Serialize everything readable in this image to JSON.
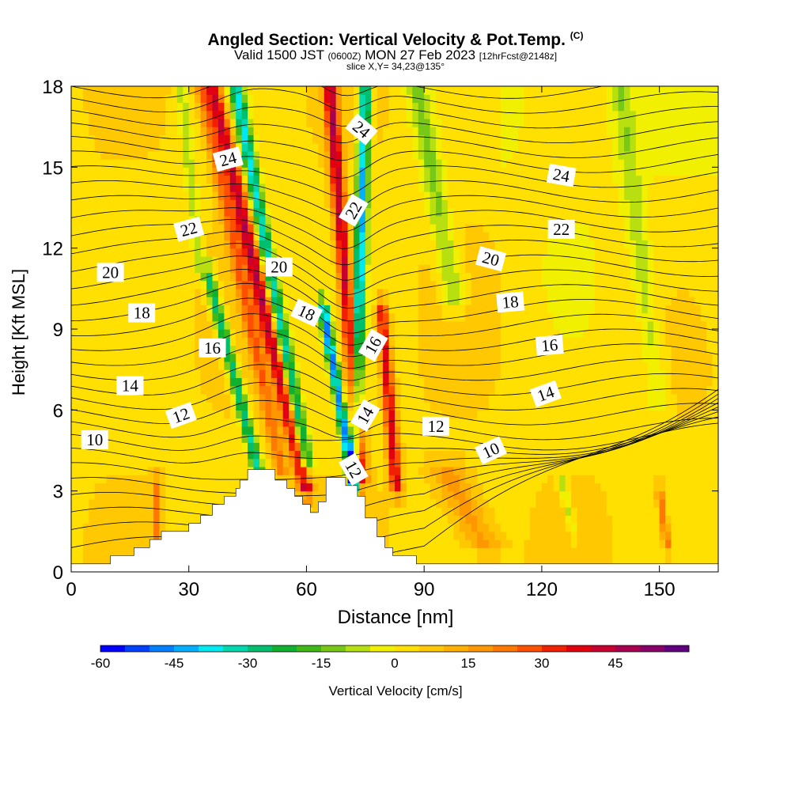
{
  "title": "Angled Section: Vertical Velocity & Pot.Temp.",
  "title_mark": "(C)",
  "subtitle_a": "Valid 1500 JST",
  "subtitle_z": "(0600Z)",
  "subtitle_b": "MON 27 Feb 2023",
  "subtitle_fcst": "[12hrFcst@2148z]",
  "slice": "slice X,Y= 34,23@135°",
  "chart_data": {
    "type": "heatmap",
    "xlabel": "Distance [nm]",
    "ylabel": "Height [Kft MSL]",
    "xlim": [
      0,
      165
    ],
    "ylim": [
      0,
      18
    ],
    "x_ticks": [
      0,
      30,
      60,
      90,
      120,
      150
    ],
    "y_ticks": [
      0,
      3,
      6,
      9,
      12,
      15,
      18
    ],
    "colorbar": {
      "label": "Vertical Velocity [cm/s]",
      "min": -60,
      "max": 55,
      "step": 5,
      "ticks": [
        -60,
        -45,
        -30,
        -15,
        0,
        15,
        30,
        45
      ],
      "colors": [
        "#0000ff",
        "#0040ff",
        "#0080ff",
        "#00b0ff",
        "#00e8f0",
        "#00d8b0",
        "#00c070",
        "#10b030",
        "#40b818",
        "#78c818",
        "#b8e010",
        "#f0f000",
        "#ffe000",
        "#ffc800",
        "#ffb000",
        "#ff9800",
        "#ff7800",
        "#ff5000",
        "#f02000",
        "#e00010",
        "#c80030",
        "#a80050",
        "#880068",
        "#600080"
      ]
    },
    "terrain_top_kft": [
      [
        0,
        0.3
      ],
      [
        10,
        0.3
      ],
      [
        10,
        0.6
      ],
      [
        16,
        0.6
      ],
      [
        16,
        0.9
      ],
      [
        20,
        0.9
      ],
      [
        20,
        1.2
      ],
      [
        23,
        1.2
      ],
      [
        23,
        1.5
      ],
      [
        30,
        1.5
      ],
      [
        30,
        1.8
      ],
      [
        33,
        1.8
      ],
      [
        33,
        2.1
      ],
      [
        36,
        2.1
      ],
      [
        36,
        2.5
      ],
      [
        39,
        2.5
      ],
      [
        39,
        2.8
      ],
      [
        42,
        2.8
      ],
      [
        42,
        3.1
      ],
      [
        43,
        3.1
      ],
      [
        43,
        3.4
      ],
      [
        45,
        3.4
      ],
      [
        45,
        3.8
      ],
      [
        52,
        3.8
      ],
      [
        52,
        3.4
      ],
      [
        55,
        3.4
      ],
      [
        55,
        3.1
      ],
      [
        57,
        3.1
      ],
      [
        57,
        2.8
      ],
      [
        59,
        2.8
      ],
      [
        59,
        2.5
      ],
      [
        61,
        2.5
      ],
      [
        61,
        2.2
      ],
      [
        63,
        2.2
      ],
      [
        63,
        2.6
      ],
      [
        65,
        2.6
      ],
      [
        65,
        3.5
      ],
      [
        70,
        3.5
      ],
      [
        70,
        3.2
      ],
      [
        73,
        3.2
      ],
      [
        73,
        2.8
      ],
      [
        75,
        2.8
      ],
      [
        75,
        2.0
      ],
      [
        78,
        2.0
      ],
      [
        78,
        1.3
      ],
      [
        80,
        1.3
      ],
      [
        80,
        0.9
      ],
      [
        82,
        0.9
      ],
      [
        82,
        0.6
      ],
      [
        88,
        0.6
      ],
      [
        88,
        0.3
      ],
      [
        165,
        0.3
      ]
    ],
    "velocity_features": [
      {
        "x0": 36,
        "x1": 60,
        "y0": 18,
        "y1": 3.0,
        "width_nm": 4,
        "value": 40
      },
      {
        "x0": 33,
        "x1": 54,
        "y0": 18,
        "y1": 3.5,
        "width_nm": 3.5,
        "value": 20
      },
      {
        "x0": 42,
        "x1": 60,
        "y0": 18,
        "y1": 4.0,
        "width_nm": 3.5,
        "value": -40
      },
      {
        "x0": 35,
        "x1": 48,
        "y0": 11,
        "y1": 3.6,
        "width_nm": 3,
        "value": -35
      },
      {
        "x0": 66,
        "x1": 74,
        "y0": 18,
        "y1": 3.2,
        "width_nm": 3.5,
        "value": 40
      },
      {
        "x0": 75,
        "x1": 72,
        "y0": 18,
        "y1": 3.0,
        "width_nm": 3,
        "value": -45
      },
      {
        "x0": 79,
        "x1": 83,
        "y0": 10,
        "y1": 3.0,
        "width_nm": 3,
        "value": 35
      },
      {
        "x0": 64,
        "x1": 72,
        "y0": 10,
        "y1": 3.3,
        "width_nm": 2.5,
        "value": -50
      },
      {
        "x0": 88,
        "x1": 98,
        "y0": 18,
        "y1": 10,
        "width_nm": 6,
        "value": -15
      },
      {
        "x0": 28,
        "x1": 33,
        "y0": 18,
        "y1": 11,
        "width_nm": 3,
        "value": -12
      },
      {
        "x0": 140,
        "x1": 150,
        "y0": 18,
        "y1": 6,
        "width_nm": 5,
        "value": -10
      },
      {
        "x0": 150,
        "x1": 152,
        "y0": 3.0,
        "y1": 1.0,
        "width_nm": 2,
        "value": 22
      },
      {
        "x0": 22,
        "x1": 22,
        "y0": 3.2,
        "y1": 1.2,
        "width_nm": 2,
        "value": 20
      },
      {
        "x0": 125,
        "x1": 128,
        "y0": 3.5,
        "y1": 1.5,
        "width_nm": 2,
        "value": -12
      },
      {
        "x0": 95,
        "x1": 105,
        "y0": 4.0,
        "y1": 1.0,
        "width_nm": 10,
        "value": 14
      }
    ],
    "theta_labels": [
      {
        "text": "24",
        "x": 40,
        "y": 15.3,
        "angle": -15
      },
      {
        "text": "24",
        "x": 74,
        "y": 16.4,
        "angle": 40
      },
      {
        "text": "24",
        "x": 125,
        "y": 14.7,
        "angle": 10
      },
      {
        "text": "22",
        "x": 30,
        "y": 12.7,
        "angle": -15
      },
      {
        "text": "22",
        "x": 72,
        "y": 13.4,
        "angle": -60
      },
      {
        "text": "22",
        "x": 125,
        "y": 12.7,
        "angle": 0
      },
      {
        "text": "20",
        "x": 10,
        "y": 11.1,
        "angle": 0
      },
      {
        "text": "20",
        "x": 53,
        "y": 11.3,
        "angle": 0
      },
      {
        "text": "20",
        "x": 107,
        "y": 11.6,
        "angle": 15
      },
      {
        "text": "18",
        "x": 18,
        "y": 9.6,
        "angle": 0
      },
      {
        "text": "18",
        "x": 60,
        "y": 9.6,
        "angle": 25
      },
      {
        "text": "18",
        "x": 112,
        "y": 10.0,
        "angle": -5
      },
      {
        "text": "16",
        "x": 36,
        "y": 8.3,
        "angle": 0
      },
      {
        "text": "16",
        "x": 77,
        "y": 8.4,
        "angle": -60
      },
      {
        "text": "16",
        "x": 122,
        "y": 8.4,
        "angle": -5
      },
      {
        "text": "14",
        "x": 15,
        "y": 6.9,
        "angle": 0
      },
      {
        "text": "14",
        "x": 75,
        "y": 5.8,
        "angle": -60
      },
      {
        "text": "14",
        "x": 121,
        "y": 6.6,
        "angle": -20
      },
      {
        "text": "12",
        "x": 28,
        "y": 5.8,
        "angle": -20
      },
      {
        "text": "12",
        "x": 72,
        "y": 3.8,
        "angle": 60
      },
      {
        "text": "12",
        "x": 93,
        "y": 5.4,
        "angle": 0
      },
      {
        "text": "10",
        "x": 6,
        "y": 4.9,
        "angle": 0
      },
      {
        "text": "10",
        "x": 107,
        "y": 4.5,
        "angle": -25
      }
    ]
  }
}
